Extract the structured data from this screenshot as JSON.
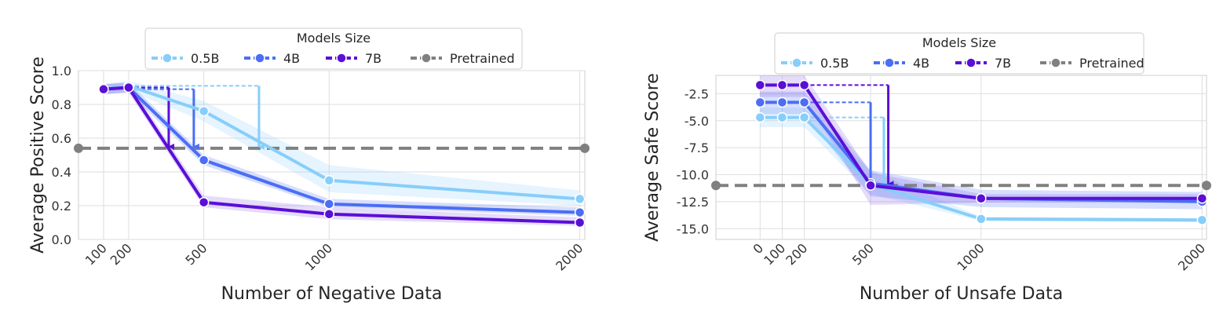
{
  "chart_data": [
    {
      "type": "line",
      "xlabel": "Number of Negative Data",
      "ylabel": "Average Positive Score",
      "x_ticks": [
        "100",
        "200",
        "500",
        "1000",
        "2000"
      ],
      "x_tick_values": [
        100,
        200,
        500,
        1000,
        2000
      ],
      "y_ticks": [
        "0.0",
        "0.2",
        "0.4",
        "0.6",
        "0.8",
        "1.0"
      ],
      "y_tick_values": [
        0.0,
        0.2,
        0.4,
        0.6,
        0.8,
        1.0
      ],
      "xlim": [
        0,
        2020
      ],
      "ylim": [
        0.0,
        1.0
      ],
      "grid": true,
      "legend": {
        "title": "Models Size",
        "placement": "top-center",
        "entries": [
          "0.5B",
          "4B",
          "7B",
          "Pretrained"
        ]
      },
      "pretrained_baseline": 0.54,
      "series": [
        {
          "name": "0.5B",
          "color": "#87cefa",
          "band_color": "#87cefa",
          "x": [
            100,
            200,
            500,
            1000,
            2000
          ],
          "y": [
            0.89,
            0.91,
            0.76,
            0.35,
            0.24
          ],
          "band_low": [
            0.86,
            0.88,
            0.7,
            0.28,
            0.2
          ],
          "band_high": [
            0.92,
            0.94,
            0.82,
            0.44,
            0.29
          ]
        },
        {
          "name": "4B",
          "color": "#4b6ef5",
          "band_color": "#4b6ef5",
          "x": [
            100,
            200,
            500,
            1000,
            2000
          ],
          "y": [
            0.89,
            0.9,
            0.47,
            0.21,
            0.16
          ],
          "band_low": [
            0.86,
            0.87,
            0.44,
            0.19,
            0.14
          ],
          "band_high": [
            0.92,
            0.93,
            0.5,
            0.24,
            0.19
          ]
        },
        {
          "name": "7B",
          "color": "#5a0fd6",
          "band_color": "#8a5ae6",
          "x": [
            100,
            200,
            500,
            1000,
            2000
          ],
          "y": [
            0.89,
            0.9,
            0.22,
            0.15,
            0.1
          ],
          "band_low": [
            0.86,
            0.87,
            0.19,
            0.12,
            0.08
          ],
          "band_high": [
            0.92,
            0.93,
            0.26,
            0.19,
            0.13
          ]
        }
      ],
      "drop_arrows": [
        {
          "series": "0.5B",
          "x_end": 720,
          "y_from": 0.91,
          "y_to": 0.54
        },
        {
          "series": "4B",
          "x_end": 460,
          "y_from": 0.89,
          "y_to": 0.54
        },
        {
          "series": "7B",
          "x_end": 360,
          "y_from": 0.9,
          "y_to": 0.54
        }
      ]
    },
    {
      "type": "line",
      "xlabel": "Number of Unsafe Data",
      "ylabel": "Average Safe Score",
      "x_ticks": [
        "0",
        "100",
        "200",
        "500",
        "1000",
        "2000"
      ],
      "x_tick_values": [
        0,
        100,
        200,
        500,
        1000,
        2000
      ],
      "y_ticks": [
        "-2.5",
        "-5.0",
        "-7.5",
        "-10.0",
        "-12.5",
        "-15.0"
      ],
      "y_tick_values": [
        -2.5,
        -5.0,
        -7.5,
        -10.0,
        -12.5,
        -15.0
      ],
      "xlim": [
        -200,
        2020
      ],
      "ylim": [
        -16.0,
        -0.8
      ],
      "grid": true,
      "legend": {
        "title": "Models Size",
        "placement": "top-center",
        "entries": [
          "0.5B",
          "4B",
          "7B",
          "Pretrained"
        ]
      },
      "pretrained_baseline": -11.0,
      "series": [
        {
          "name": "0.5B",
          "color": "#87cefa",
          "band_color": "#87cefa",
          "x": [
            0,
            100,
            200,
            500,
            1000,
            2000
          ],
          "y": [
            -4.7,
            -4.7,
            -4.7,
            -10.9,
            -14.1,
            -14.2
          ],
          "band_low": [
            -5.6,
            -5.6,
            -5.6,
            -11.8,
            -14.3,
            -14.4
          ],
          "band_high": [
            -3.8,
            -3.8,
            -3.8,
            -9.6,
            -13.9,
            -14.0
          ]
        },
        {
          "name": "4B",
          "color": "#4b6ef5",
          "band_color": "#4b6ef5",
          "x": [
            0,
            100,
            200,
            500,
            1000,
            2000
          ],
          "y": [
            -3.3,
            -3.3,
            -3.3,
            -10.8,
            -12.2,
            -12.5
          ],
          "band_low": [
            -4.4,
            -4.4,
            -4.4,
            -12.0,
            -13.0,
            -13.2
          ],
          "band_high": [
            -2.3,
            -2.3,
            -2.3,
            -9.6,
            -11.4,
            -11.6
          ]
        },
        {
          "name": "7B",
          "color": "#5a0fd6",
          "band_color": "#8a5ae6",
          "x": [
            0,
            100,
            200,
            500,
            1000,
            2000
          ],
          "y": [
            -1.7,
            -1.7,
            -1.7,
            -11.0,
            -12.2,
            -12.2
          ],
          "band_low": [
            -2.8,
            -2.8,
            -2.8,
            -12.8,
            -12.6,
            -12.6
          ],
          "band_high": [
            -0.8,
            -0.8,
            -0.8,
            -9.8,
            -11.8,
            -11.8
          ]
        }
      ],
      "drop_arrows": [
        {
          "series": "0.5B",
          "x_end": 560,
          "y_from": -4.7,
          "y_to": -11.0
        },
        {
          "series": "4B",
          "x_end": 500,
          "y_from": -3.3,
          "y_to": -11.0
        },
        {
          "series": "7B",
          "x_end": 580,
          "y_from": -1.7,
          "y_to": -11.0
        }
      ]
    }
  ]
}
